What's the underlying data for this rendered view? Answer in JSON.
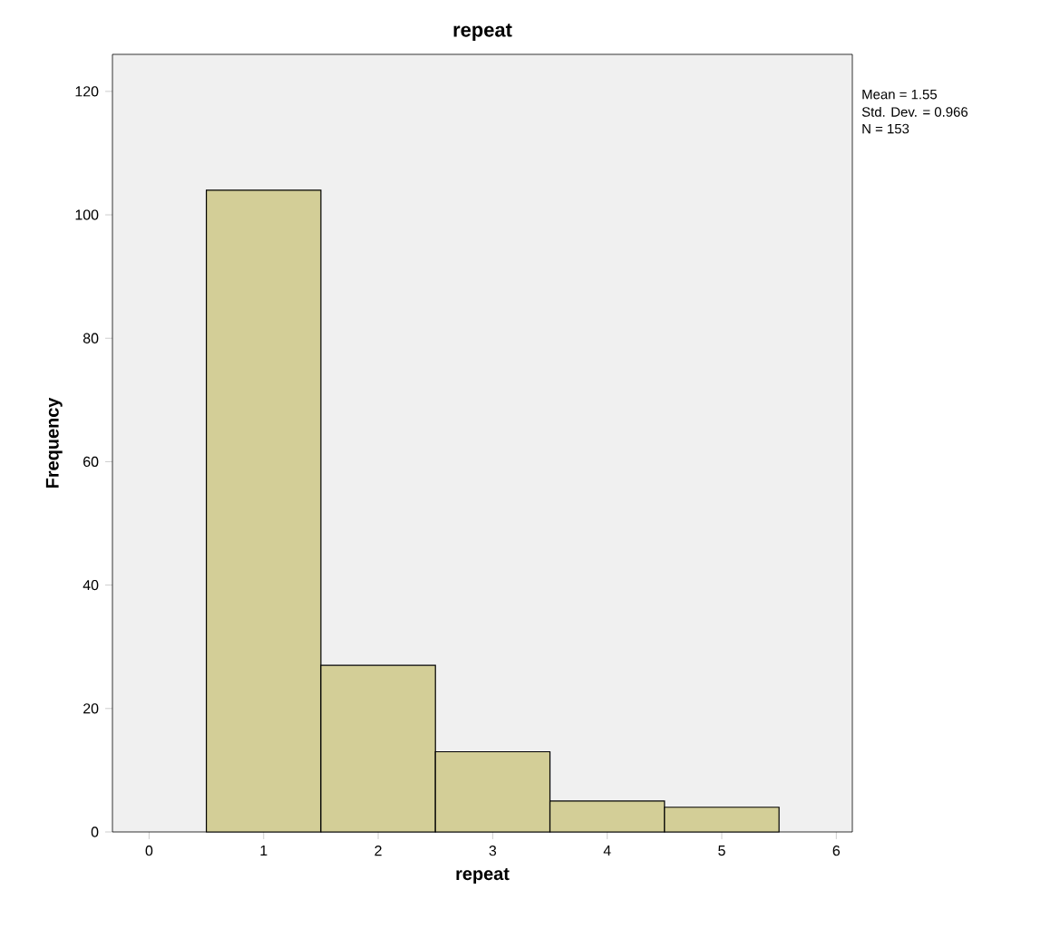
{
  "chart_data": {
    "type": "histogram",
    "title": "repeat",
    "xlabel": "repeat",
    "ylabel": "Frequency",
    "bins": [
      0.5,
      1.5,
      2.5,
      3.5,
      4.5,
      5.5
    ],
    "values": [
      104,
      27,
      13,
      5,
      4
    ],
    "color": "#d3ce97",
    "xlim": [
      -0.32,
      6.14
    ],
    "ylim": [
      0,
      126
    ],
    "xticks": [
      0,
      1,
      2,
      3,
      4,
      5,
      6
    ],
    "yticks": [
      0,
      20,
      40,
      60,
      80,
      100,
      120
    ],
    "annotations": [
      "Mean = 1.55",
      "Std. Dev. = 0.966",
      "N = 153"
    ]
  }
}
